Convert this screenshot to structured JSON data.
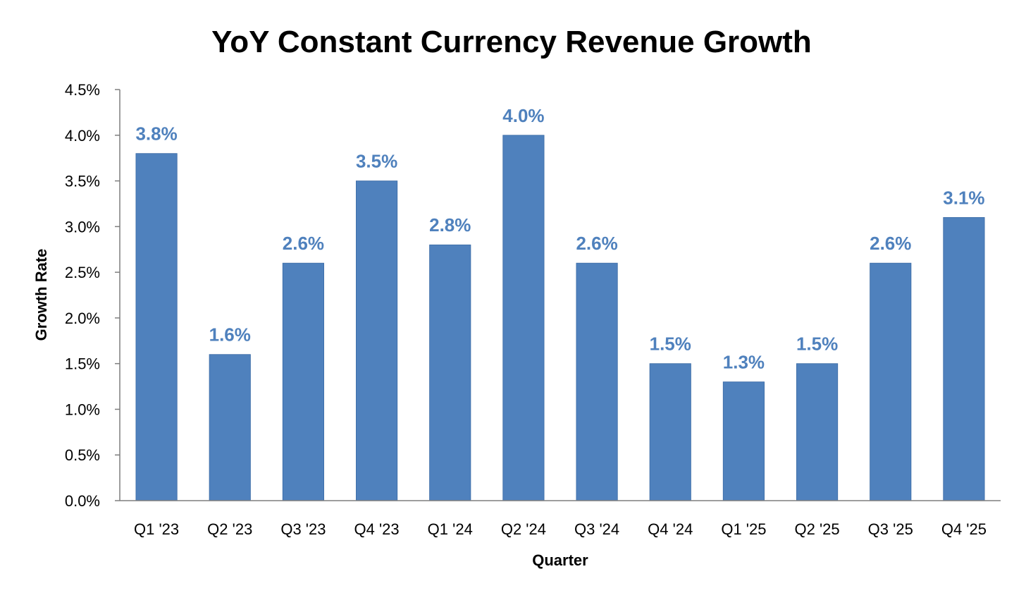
{
  "chart_data": {
    "type": "bar",
    "title": "YoY Constant Currency Revenue Growth",
    "xlabel": "Quarter",
    "ylabel": "Growth Rate",
    "categories": [
      "Q1 '23",
      "Q2 '23",
      "Q3 '23",
      "Q4 '23",
      "Q1 '24",
      "Q2 '24",
      "Q3 '24",
      "Q4 '24",
      "Q1 '25",
      "Q2 '25",
      "Q3 '25",
      "Q4 '25"
    ],
    "values": [
      3.8,
      1.6,
      2.6,
      3.5,
      2.8,
      4.0,
      2.6,
      1.5,
      1.3,
      1.5,
      2.6,
      3.1
    ],
    "data_labels": [
      "3.8%",
      "1.6%",
      "2.6%",
      "3.5%",
      "2.8%",
      "4.0%",
      "2.6%",
      "1.5%",
      "1.3%",
      "1.5%",
      "2.6%",
      "3.1%"
    ],
    "ylim": [
      0,
      4.5
    ],
    "yticks": [
      0,
      0.5,
      1.0,
      1.5,
      2.0,
      2.5,
      3.0,
      3.5,
      4.0,
      4.5
    ],
    "ytick_labels": [
      "0.0%",
      "0.5%",
      "1.0%",
      "1.5%",
      "2.0%",
      "2.5%",
      "3.0%",
      "3.5%",
      "4.0%",
      "4.5%"
    ],
    "grid": false,
    "legend": "none",
    "bar_color": "#4F81BD",
    "label_color": "#4F81BD",
    "axis_color": "#7F7F7F"
  }
}
